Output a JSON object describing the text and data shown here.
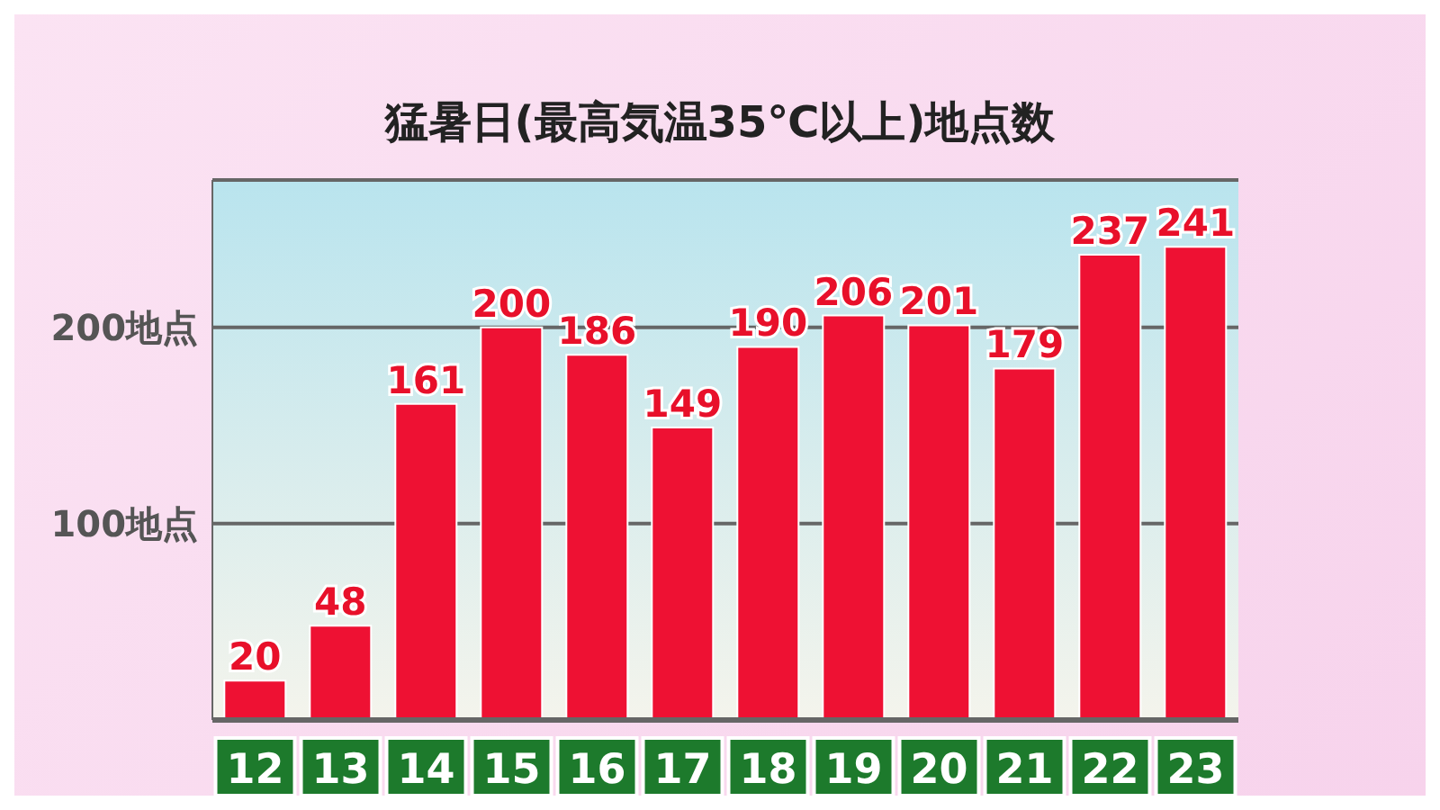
{
  "chart_data": {
    "type": "bar",
    "title": "猛暑日(最高気温35℃以上)地点数",
    "categories": [
      "12",
      "13",
      "14",
      "15",
      "16",
      "17",
      "18",
      "19",
      "20",
      "21",
      "22",
      "23"
    ],
    "values": [
      20,
      48,
      161,
      200,
      186,
      149,
      190,
      206,
      201,
      179,
      237,
      241
    ],
    "color": "#ee1133",
    "ylim": [
      0,
      275
    ],
    "yticks": [
      {
        "value": 100,
        "label": "100地点"
      },
      {
        "value": 200,
        "label": "200地点"
      }
    ],
    "grid": "y",
    "data_labels": true
  }
}
